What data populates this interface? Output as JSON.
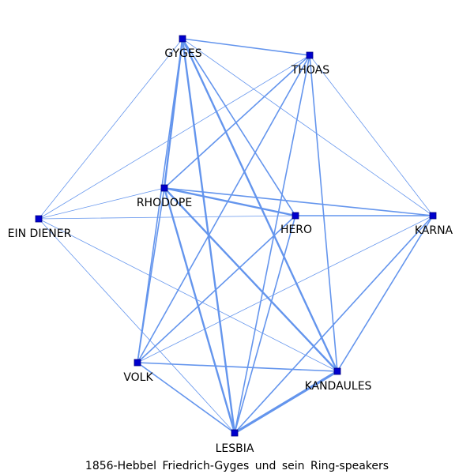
{
  "title": "1856-Hebbel Friedrich-Gyges und sein Ring-speakers",
  "colors": {
    "edge": "#6495ED",
    "node": "#0000CD",
    "node_stroke": "#000080",
    "label": "#000000"
  },
  "nodes": [
    {
      "id": "GYGES",
      "label": "GYGES"
    },
    {
      "id": "THOAS",
      "label": "THOAS"
    },
    {
      "id": "RHODOPE",
      "label": "RHODOPE"
    },
    {
      "id": "EIN DIENER",
      "label": "EIN DIENER"
    },
    {
      "id": "HERO",
      "label": "HERO"
    },
    {
      "id": "KARNA",
      "label": "KARNA"
    },
    {
      "id": "VOLK",
      "label": "VOLK"
    },
    {
      "id": "KANDAULES",
      "label": "KANDAULES"
    },
    {
      "id": "LESBIA",
      "label": "LESBIA"
    }
  ],
  "edges": [
    {
      "source": "GYGES",
      "target": "THOAS",
      "weight": 2
    },
    {
      "source": "GYGES",
      "target": "RHODOPE",
      "weight": 3
    },
    {
      "source": "GYGES",
      "target": "EIN DIENER",
      "weight": 1
    },
    {
      "source": "GYGES",
      "target": "HERO",
      "weight": 2
    },
    {
      "source": "GYGES",
      "target": "KARNA",
      "weight": 1
    },
    {
      "source": "GYGES",
      "target": "VOLK",
      "weight": 2
    },
    {
      "source": "GYGES",
      "target": "KANDAULES",
      "weight": 3
    },
    {
      "source": "GYGES",
      "target": "LESBIA",
      "weight": 3
    },
    {
      "source": "THOAS",
      "target": "RHODOPE",
      "weight": 2
    },
    {
      "source": "THOAS",
      "target": "EIN DIENER",
      "weight": 1
    },
    {
      "source": "THOAS",
      "target": "KARNA",
      "weight": 1
    },
    {
      "source": "THOAS",
      "target": "VOLK",
      "weight": 2
    },
    {
      "source": "THOAS",
      "target": "KANDAULES",
      "weight": 2
    },
    {
      "source": "THOAS",
      "target": "LESBIA",
      "weight": 2
    },
    {
      "source": "RHODOPE",
      "target": "EIN DIENER",
      "weight": 1
    },
    {
      "source": "RHODOPE",
      "target": "HERO",
      "weight": 3
    },
    {
      "source": "RHODOPE",
      "target": "KARNA",
      "weight": 2
    },
    {
      "source": "RHODOPE",
      "target": "VOLK",
      "weight": 2
    },
    {
      "source": "RHODOPE",
      "target": "KANDAULES",
      "weight": 3
    },
    {
      "source": "RHODOPE",
      "target": "LESBIA",
      "weight": 3
    },
    {
      "source": "EIN DIENER",
      "target": "HERO",
      "weight": 1
    },
    {
      "source": "EIN DIENER",
      "target": "KANDAULES",
      "weight": 1
    },
    {
      "source": "EIN DIENER",
      "target": "LESBIA",
      "weight": 1
    },
    {
      "source": "HERO",
      "target": "KARNA",
      "weight": 2
    },
    {
      "source": "HERO",
      "target": "VOLK",
      "weight": 2
    },
    {
      "source": "HERO",
      "target": "LESBIA",
      "weight": 2
    },
    {
      "source": "KARNA",
      "target": "VOLK",
      "weight": 1
    },
    {
      "source": "KARNA",
      "target": "KANDAULES",
      "weight": 2
    },
    {
      "source": "KARNA",
      "target": "LESBIA",
      "weight": 2
    },
    {
      "source": "VOLK",
      "target": "KANDAULES",
      "weight": 2
    },
    {
      "source": "VOLK",
      "target": "LESBIA",
      "weight": 2
    },
    {
      "source": "KANDAULES",
      "target": "LESBIA",
      "weight": 4
    }
  ]
}
